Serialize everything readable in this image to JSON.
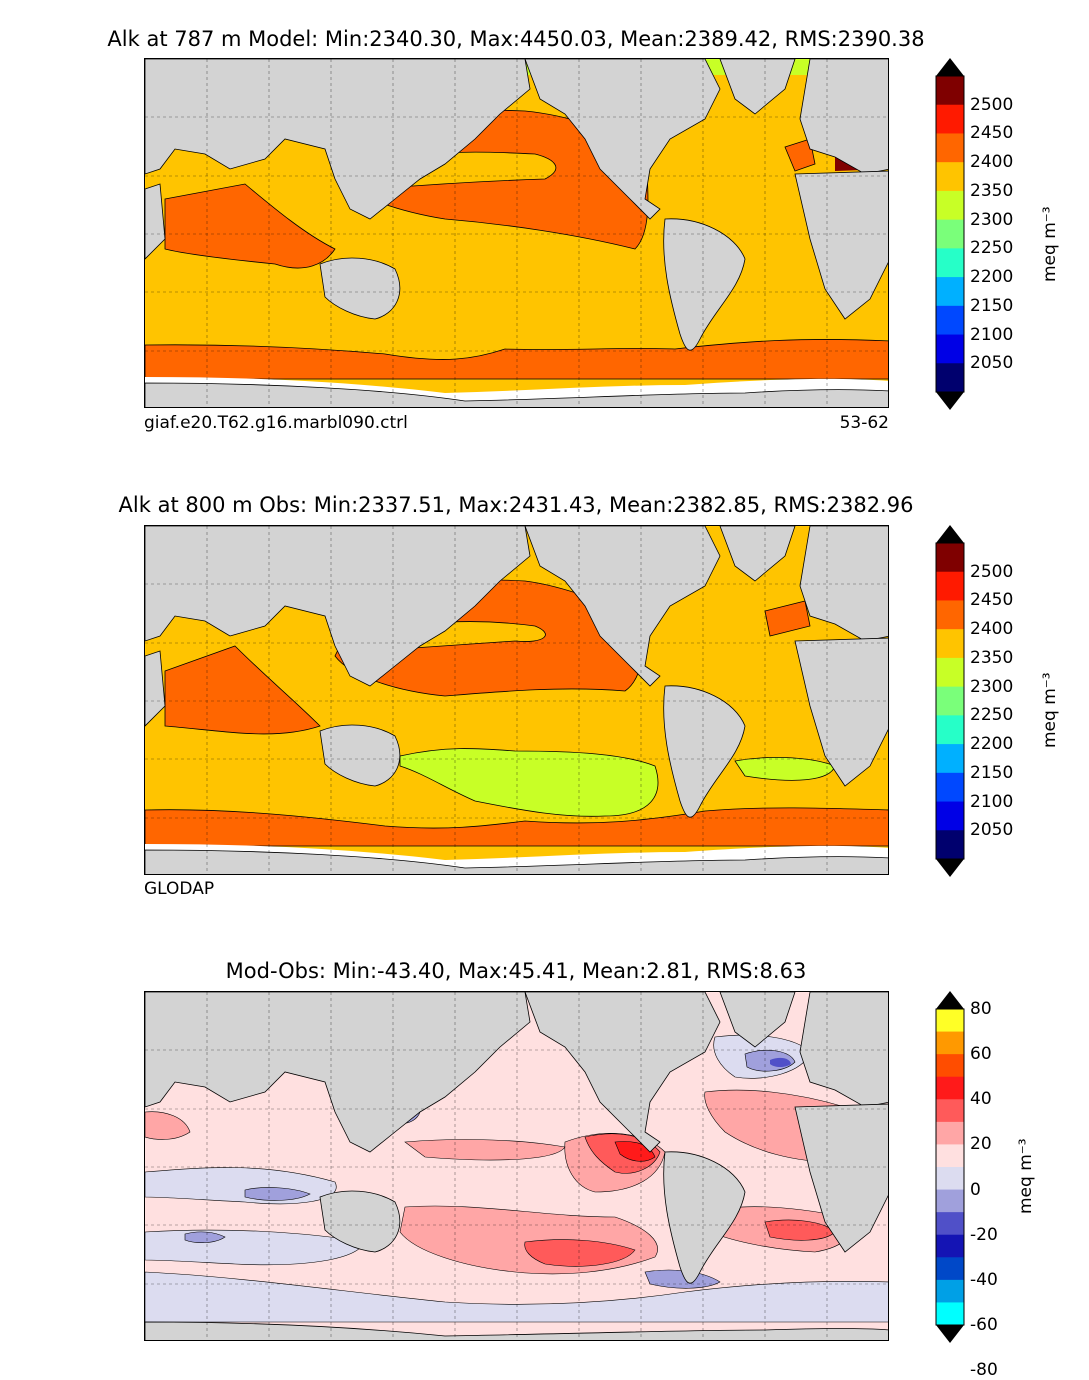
{
  "panels": [
    {
      "title": "Alk at 787 m Model: Min:2340.30, Max:4450.03, Mean:2389.42, RMS:2390.38",
      "caption_left": "giaf.e20.T62.g16.marbl090.ctrl",
      "caption_right": "53-62",
      "colorbar": {
        "unit": "meq m⁻³",
        "ticks": [
          "2500",
          "2450",
          "2400",
          "2350",
          "2300",
          "2250",
          "2200",
          "2150",
          "2100",
          "2050"
        ],
        "colors": [
          "#7f0000",
          "#ff1a00",
          "#ff6600",
          "#ffc400",
          "#c8ff26",
          "#7aff7a",
          "#26ffc8",
          "#00b0ff",
          "#0048ff",
          "#0000e6",
          "#00006e"
        ],
        "over_color": "#000000",
        "under_color": "#000000"
      }
    },
    {
      "title": "Alk at 800 m Obs: Min:2337.51, Max:2431.43, Mean:2382.85, RMS:2382.96",
      "caption_left": "GLODAP",
      "caption_right": "",
      "colorbar": {
        "unit": "meq m⁻³",
        "ticks": [
          "2500",
          "2450",
          "2400",
          "2350",
          "2300",
          "2250",
          "2200",
          "2150",
          "2100",
          "2050"
        ],
        "colors": [
          "#7f0000",
          "#ff1a00",
          "#ff6600",
          "#ffc400",
          "#c8ff26",
          "#7aff7a",
          "#26ffc8",
          "#00b0ff",
          "#0048ff",
          "#0000e6",
          "#00006e"
        ],
        "over_color": "#000000",
        "under_color": "#000000"
      }
    },
    {
      "title": "Mod-Obs: Min:-43.40, Max:45.41, Mean:2.81, RMS:8.63",
      "caption_left": "",
      "caption_right": "",
      "colorbar": {
        "unit": "meq m⁻³",
        "ticks": [
          "80",
          "60",
          "40",
          "20",
          "0",
          "-20",
          "-40",
          "-60",
          "-80"
        ],
        "colors": [
          "#ffff26",
          "#ff9900",
          "#ff4d00",
          "#ff1a1a",
          "#ff5a5a",
          "#ffa6a6",
          "#ffe0e0",
          "#dcdcf0",
          "#a0a0dc",
          "#5050c8",
          "#1414b4",
          "#0048c8",
          "#00a0e6",
          "#00ffff"
        ],
        "over_color": "#000000",
        "under_color": "#000000"
      }
    }
  ]
}
